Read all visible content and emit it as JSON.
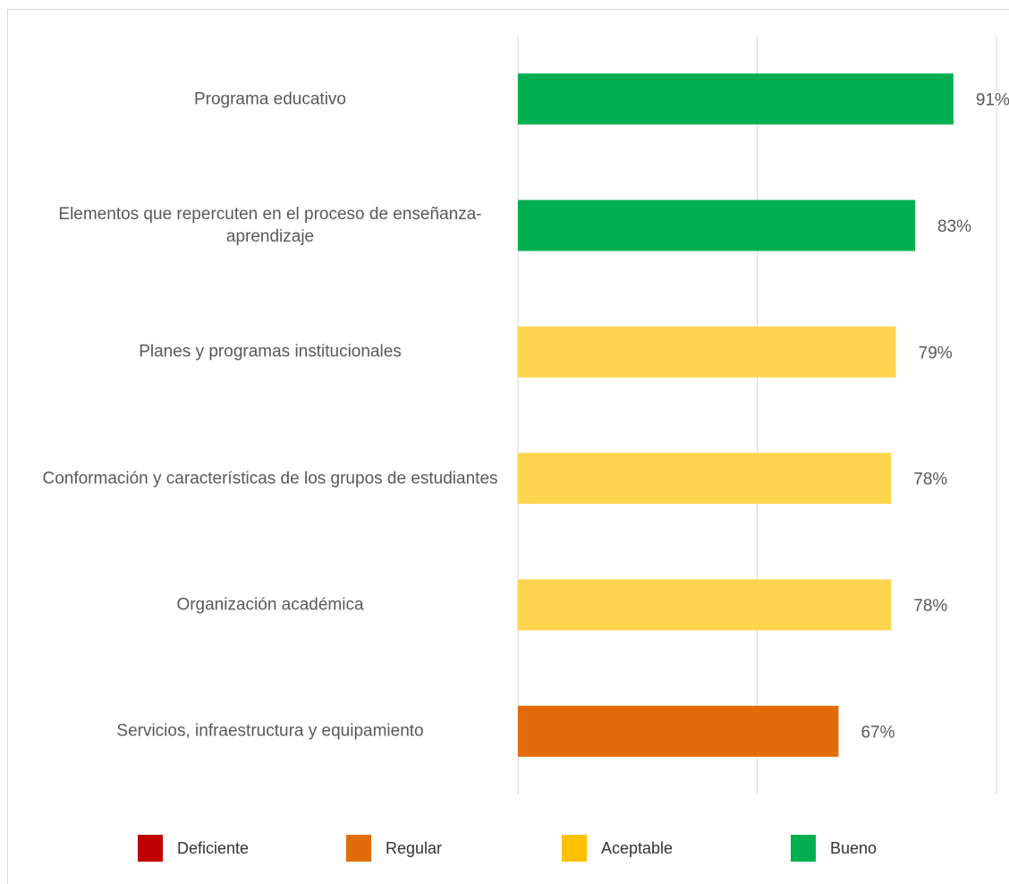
{
  "chart_data": {
    "type": "bar",
    "orientation": "horizontal",
    "categories": [
      "Programa educativo",
      "Elementos que repercuten en el proceso de enseñanza-aprendizaje",
      "Planes y programas institucionales",
      "Conformación y características de los grupos de estudiantes",
      "Organización académica",
      "Servicios, infraestructura y equipamiento"
    ],
    "values": [
      91,
      83,
      79,
      78,
      78,
      67
    ],
    "value_labels": [
      "91%",
      "83%",
      "79%",
      "78%",
      "78%",
      "67%"
    ],
    "colors": [
      "#00b050",
      "#00b050",
      "#ffd54f",
      "#ffd54f",
      "#ffd54f",
      "#e36c0a"
    ],
    "xlim": [
      0,
      100
    ],
    "xticks": [
      0,
      50,
      100
    ],
    "grid": true,
    "legend": [
      {
        "name": "Deficiente",
        "color": "#c00000"
      },
      {
        "name": "Regular",
        "color": "#e36c0a"
      },
      {
        "name": "Aceptable",
        "color": "#ffc000"
      },
      {
        "name": "Bueno",
        "color": "#00b050"
      }
    ]
  }
}
